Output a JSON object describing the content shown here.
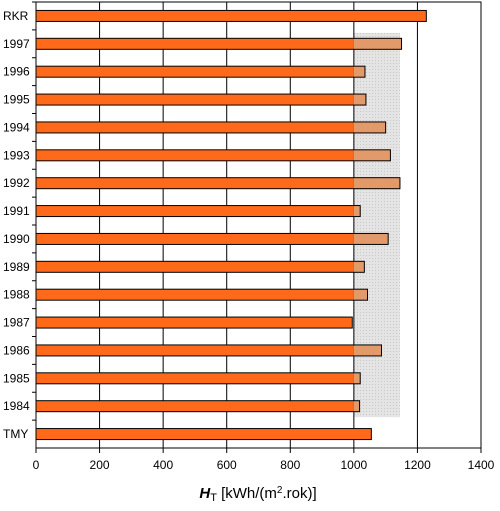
{
  "chart_data": {
    "type": "bar",
    "orientation": "horizontal",
    "categories": [
      "RKR",
      "1997",
      "1996",
      "1995",
      "1994",
      "1993",
      "1992",
      "1991",
      "1990",
      "1989",
      "1988",
      "1987",
      "1986",
      "1985",
      "1984",
      "TMY"
    ],
    "values": [
      1228,
      1150,
      1035,
      1038,
      1100,
      1115,
      1145,
      1020,
      1108,
      1033,
      1043,
      995,
      1087,
      1020,
      1018,
      1055
    ],
    "xlim": [
      0,
      1400
    ],
    "xticks": [
      0,
      200,
      400,
      600,
      800,
      1000,
      1200,
      1400
    ],
    "xlabel": {
      "symbol": "H",
      "subscript": "T",
      "unit_pre": " [kWh/(m",
      "superscript": "2",
      "unit_post": ".rok)]"
    },
    "ylabel": "",
    "grid": "vertical",
    "reference_band": {
      "from": 1000,
      "to": 1145,
      "color": "#d9d9d9",
      "categories": "1984-1997"
    },
    "bar_color": "#ff6a1a",
    "bar_color_in_band": "#e29a6a",
    "bar_edge": "#000000"
  }
}
